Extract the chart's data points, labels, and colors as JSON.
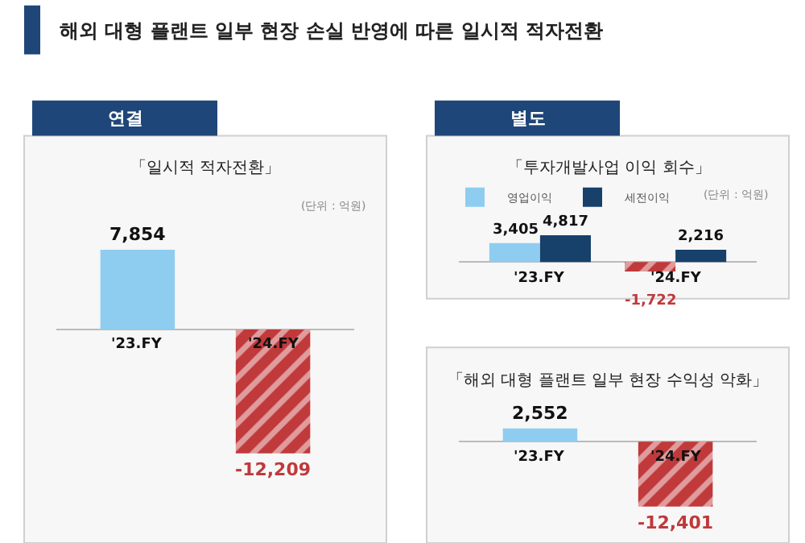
{
  "chart_data": [
    {
      "type": "bar",
      "title": "연결",
      "subtitle": "「일시적 적자전환」",
      "annotations": [
        "해외 대형 플랜트 일부 현장 손실 반영에 따른 일시적 적자전환",
        "(단위 : 억원)"
      ],
      "categories": [
        "'23.FY",
        "'24.FY"
      ],
      "series": [
        {
          "colors": [
            "#8fcdf0",
            "#c0393b"
          ],
          "values": [
            7854,
            -12209
          ],
          "value_labels": [
            "7,854",
            "-12,209"
          ]
        }
      ]
    },
    {
      "type": "bar",
      "title": "별도",
      "subtitle": "「투자개발사업 이익 회수」",
      "annotations": [
        "(단위 : 억원)"
      ],
      "categories": [
        "'23.FY",
        "'24.FY"
      ],
      "legend": "top left",
      "series": [
        {
          "name": "영업이익",
          "colors": [
            "#8fcdf0",
            "#c0393b"
          ],
          "values": [
            3405,
            -1722
          ],
          "value_labels": [
            "3,405",
            "-1,722"
          ]
        },
        {
          "name": "세전이익",
          "colors": [
            "#17406b",
            "#17406b"
          ],
          "values": [
            4817,
            2216
          ],
          "value_labels": [
            "4,817",
            "2,216"
          ]
        }
      ]
    },
    {
      "type": "bar",
      "subtitle": "「해외 대형 플랜트 일부 현장 수익성 악화」",
      "categories": [
        "'23.FY",
        "'24.FY"
      ],
      "series": [
        {
          "colors": [
            "#8fcdf0",
            "#c0393b"
          ],
          "values": [
            2552,
            -12401
          ],
          "value_labels": [
            "2,552",
            "-12,401"
          ]
        }
      ]
    }
  ]
}
